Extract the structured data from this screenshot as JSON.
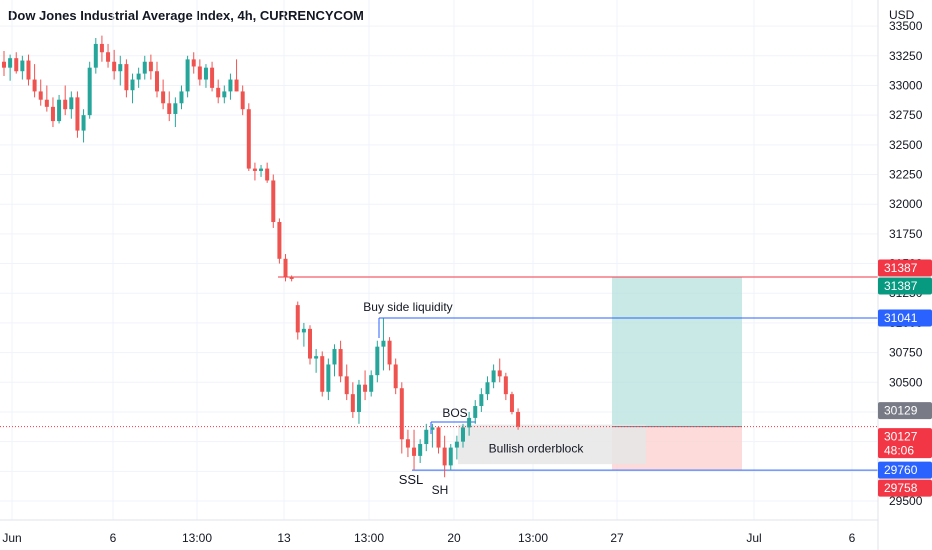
{
  "header": {
    "title": "Dow Jones Industrial Average Index, 4h, CURRENCYCOM",
    "currency": "USD"
  },
  "colors": {
    "up": "#26a69a",
    "down": "#ef5350",
    "grid": "#f0f3fa",
    "axis_line": "#e0e3eb",
    "blue_line": "#2962ff",
    "red_line": "#f23645",
    "tp_zone": "#b2dfdb",
    "sl_zone": "#fcd2d2",
    "orderblock": "#e6e6e6",
    "badge_red": "#f23645",
    "badge_green": "#089981",
    "badge_blue": "#2962ff",
    "badge_gray": "#787b86"
  },
  "chart_data": {
    "type": "candlestick",
    "title": "Dow Jones Industrial Average Index, 4h, CURRENCYCOM",
    "ylim": [
      29340,
      33720
    ],
    "y_ticks": [
      29500,
      29750,
      30000,
      30250,
      30500,
      30750,
      31000,
      31250,
      31500,
      31750,
      32000,
      32250,
      32500,
      32750,
      33000,
      33250,
      33500
    ],
    "x_ticks": [
      "Jun",
      "6",
      "13:00",
      "13",
      "13:00",
      "20",
      "13:00",
      "27",
      "Jul",
      "6"
    ],
    "grid": true,
    "price_badges": [
      {
        "label": "31387",
        "kind": "red"
      },
      {
        "label": "31387",
        "kind": "green"
      },
      {
        "label": "31041",
        "kind": "blue"
      },
      {
        "label": "30129",
        "kind": "gray"
      },
      {
        "label": "30127",
        "sub": "48:06",
        "kind": "red-current"
      },
      {
        "label": "29760",
        "kind": "blue"
      },
      {
        "label": "29758",
        "kind": "red"
      }
    ],
    "levels": {
      "target": 31387,
      "buy_side_liquidity": 31041,
      "entry": 30127,
      "ssl": 29760,
      "bos": 30165
    },
    "annotations": [
      "Buy side liquidity",
      "BOS",
      "Bullish orderblock",
      "SSL",
      "SH"
    ],
    "candles": [
      [
        33200,
        33290,
        33080,
        33150
      ],
      [
        33150,
        33260,
        33040,
        33230
      ],
      [
        33230,
        33280,
        33100,
        33120
      ],
      [
        33120,
        33250,
        33050,
        33210
      ],
      [
        33210,
        33260,
        33000,
        33050
      ],
      [
        33050,
        33180,
        32900,
        32950
      ],
      [
        32950,
        33050,
        32830,
        32880
      ],
      [
        32880,
        33000,
        32780,
        32820
      ],
      [
        32820,
        32900,
        32650,
        32700
      ],
      [
        32700,
        32920,
        32680,
        32880
      ],
      [
        32880,
        33000,
        32750,
        32800
      ],
      [
        32800,
        32950,
        32720,
        32900
      ],
      [
        32900,
        32950,
        32560,
        32620
      ],
      [
        32620,
        32800,
        32520,
        32750
      ],
      [
        32750,
        33200,
        32720,
        33150
      ],
      [
        33150,
        33400,
        33100,
        33350
      ],
      [
        33350,
        33420,
        33200,
        33280
      ],
      [
        33280,
        33350,
        33150,
        33200
      ],
      [
        33200,
        33300,
        33050,
        33120
      ],
      [
        33120,
        33250,
        33000,
        33180
      ],
      [
        33180,
        33220,
        32900,
        32960
      ],
      [
        32960,
        33100,
        32850,
        33050
      ],
      [
        33050,
        33150,
        32980,
        33100
      ],
      [
        33100,
        33250,
        33050,
        33200
      ],
      [
        33200,
        33260,
        33050,
        33120
      ],
      [
        33120,
        33200,
        32900,
        32950
      ],
      [
        32950,
        33050,
        32800,
        32850
      ],
      [
        32850,
        32950,
        32700,
        32760
      ],
      [
        32760,
        32900,
        32650,
        32850
      ],
      [
        32850,
        33000,
        32800,
        32950
      ],
      [
        32950,
        33250,
        32900,
        33220
      ],
      [
        33220,
        33280,
        33100,
        33160
      ],
      [
        33160,
        33220,
        33000,
        33050
      ],
      [
        33050,
        33180,
        32980,
        33150
      ],
      [
        33150,
        33200,
        32950,
        32980
      ],
      [
        32980,
        33050,
        32850,
        32900
      ],
      [
        32900,
        33000,
        32850,
        32950
      ],
      [
        32950,
        33100,
        32880,
        33050
      ],
      [
        33050,
        33220,
        32950,
        32950
      ],
      [
        32950,
        33000,
        32750,
        32800
      ],
      [
        32800,
        32850,
        32280,
        32300
      ],
      [
        32300,
        32350,
        32200,
        32280
      ],
      [
        32280,
        32330,
        32230,
        32300
      ],
      [
        32300,
        32350,
        32180,
        32200
      ],
      [
        32200,
        32250,
        31800,
        31850
      ],
      [
        31850,
        31880,
        31500,
        31540
      ],
      [
        31540,
        31580,
        31350,
        31390
      ],
      [
        31390,
        31400,
        31350,
        31370
      ],
      [
        31150,
        31180,
        30860,
        30920
      ],
      [
        30920,
        31000,
        30800,
        30950
      ],
      [
        30950,
        30980,
        30650,
        30700
      ],
      [
        30700,
        30780,
        30580,
        30720
      ],
      [
        30720,
        30760,
        30380,
        30420
      ],
      [
        30420,
        30700,
        30350,
        30650
      ],
      [
        30650,
        30820,
        30550,
        30780
      ],
      [
        30780,
        30850,
        30500,
        30550
      ],
      [
        30550,
        30650,
        30350,
        30400
      ],
      [
        30400,
        30500,
        30200,
        30250
      ],
      [
        30250,
        30520,
        30150,
        30480
      ],
      [
        30480,
        30600,
        30350,
        30420
      ],
      [
        30420,
        30600,
        30380,
        30560
      ],
      [
        30560,
        30850,
        30500,
        30800
      ],
      [
        30800,
        31040,
        30600,
        30850
      ],
      [
        30850,
        30880,
        30600,
        30650
      ],
      [
        30650,
        30700,
        30400,
        30450
      ],
      [
        30450,
        30500,
        29900,
        30020
      ],
      [
        30020,
        30100,
        29870,
        29950
      ],
      [
        29950,
        30100,
        29760,
        29880
      ],
      [
        29880,
        30020,
        29820,
        29980
      ],
      [
        29980,
        30150,
        29920,
        30100
      ],
      [
        30100,
        30150,
        29950,
        30120
      ],
      [
        30120,
        30130,
        29900,
        29950
      ],
      [
        29950,
        30050,
        29700,
        29800
      ],
      [
        29800,
        29980,
        29760,
        29950
      ],
      [
        29950,
        30050,
        29850,
        30000
      ],
      [
        30000,
        30150,
        29950,
        30120
      ],
      [
        30120,
        30250,
        30050,
        30200
      ],
      [
        30200,
        30350,
        30150,
        30300
      ],
      [
        30300,
        30450,
        30250,
        30400
      ],
      [
        30400,
        30550,
        30350,
        30500
      ],
      [
        30500,
        30650,
        30450,
        30600
      ],
      [
        30600,
        30700,
        30500,
        30550
      ],
      [
        30550,
        30580,
        30350,
        30400
      ],
      [
        30400,
        30420,
        30230,
        30250
      ],
      [
        30250,
        30280,
        30100,
        30127
      ]
    ]
  }
}
